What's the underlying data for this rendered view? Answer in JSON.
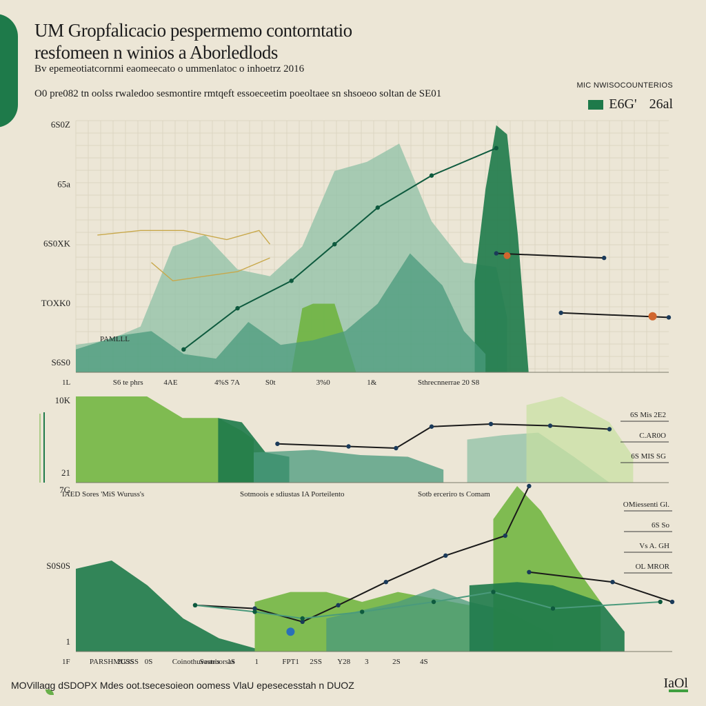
{
  "title_line1": "UM Gropfalicacio pespermemo contorntatio",
  "title_line2": "resfomeen n winios a Aborledlods",
  "subtitle": "Bv epemeotiatcornmi eaomeecato o ummenlatoc o inhoetrz 2016",
  "caption": "O0 pre082 tn oolss rwaledoo sesmontire rmtqeft essoeceetim poeoltaee sn shsoeoo soltan de SE01",
  "legend": {
    "heading": "MIC NWISOCOUNTERIOS",
    "value_a": "E6G'",
    "value_b": "26al",
    "swatch_color": "#1e7a4a"
  },
  "footer": "MOVillagg dSDOPX Mdes oot.tsecesoieon oomess VlaU epesecesstah n DUOZ",
  "corner_mark": "IaOl",
  "colors": {
    "dark_green": "#1e7a4a",
    "teal": "#4a9a7c",
    "pale_teal": "#8fc0a6",
    "very_pale": "#b9d6c2",
    "lime": "#6cb33a",
    "pale_lime": "#c8dfa0",
    "line_dark": "#0e5a3e",
    "line_black": "#1a1a1a",
    "gold": "#c8a84a",
    "marker_orange": "#d0662e",
    "marker_blue": "#2a70b8"
  },
  "chart_data": [
    {
      "type": "area",
      "panel": "top",
      "y_tick_labels": [
        "6S0Z",
        "65a",
        "6S0XK",
        "TOXK0",
        "S6S0"
      ],
      "x_tick_labels": [
        "1L",
        "S6 te phrs",
        "4AE",
        "4%S 7A",
        "S0t",
        "3%0",
        "1&",
        "Sthrecnnerrae 20 S8"
      ],
      "annotation_left": "PAMLLL",
      "series": [
        {
          "name": "",
          "kind": "area",
          "color": "pale_teal",
          "points": [
            [
              0,
              12
            ],
            [
              6,
              14
            ],
            [
              12,
              20
            ],
            [
              18,
              55
            ],
            [
              24,
              60
            ],
            [
              30,
              45
            ],
            [
              36,
              42
            ],
            [
              42,
              55
            ],
            [
              48,
              88
            ],
            [
              54,
              92
            ],
            [
              60,
              100
            ],
            [
              66,
              66
            ],
            [
              72,
              48
            ],
            [
              78,
              46
            ],
            [
              80,
              24
            ]
          ]
        },
        {
          "name": "",
          "kind": "area",
          "color": "lime",
          "points": [
            [
              40,
              0
            ],
            [
              42,
              28
            ],
            [
              44,
              30
            ],
            [
              48,
              30
            ],
            [
              52,
              0
            ]
          ]
        },
        {
          "name": "",
          "kind": "area",
          "color": "dark_green",
          "points": [
            [
              74,
              40
            ],
            [
              76,
              80
            ],
            [
              78,
              108
            ],
            [
              80,
              104
            ],
            [
              82,
              60
            ],
            [
              84,
              0
            ]
          ]
        },
        {
          "name": "",
          "kind": "area",
          "color": "teal",
          "points": [
            [
              0,
              10
            ],
            [
              8,
              16
            ],
            [
              14,
              18
            ],
            [
              20,
              8
            ],
            [
              26,
              6
            ],
            [
              32,
              22
            ],
            [
              38,
              12
            ],
            [
              44,
              14
            ],
            [
              50,
              18
            ],
            [
              56,
              30
            ],
            [
              62,
              52
            ],
            [
              68,
              38
            ],
            [
              72,
              18
            ],
            [
              76,
              8
            ]
          ]
        },
        {
          "name": "",
          "kind": "line",
          "color": "line_dark",
          "points": [
            [
              20,
              10
            ],
            [
              30,
              28
            ],
            [
              40,
              40
            ],
            [
              48,
              56
            ],
            [
              56,
              72
            ],
            [
              66,
              86
            ],
            [
              78,
              98
            ]
          ]
        },
        {
          "name": "",
          "kind": "line",
          "color": "line_black",
          "points": [
            [
              78,
              52
            ],
            [
              98,
              50
            ]
          ]
        },
        {
          "name": "",
          "kind": "line",
          "color": "line_black",
          "points": [
            [
              90,
              26
            ],
            [
              110,
              24
            ]
          ]
        },
        {
          "name": "",
          "kind": "line",
          "color": "gold",
          "points": [
            [
              4,
              60
            ],
            [
              12,
              62
            ],
            [
              20,
              62
            ],
            [
              28,
              58
            ],
            [
              34,
              62
            ],
            [
              36,
              56
            ]
          ]
        },
        {
          "name": "",
          "kind": "line",
          "color": "gold",
          "points": [
            [
              14,
              48
            ],
            [
              18,
              40
            ],
            [
              24,
              42
            ],
            [
              30,
              44
            ],
            [
              36,
              50
            ]
          ]
        }
      ]
    },
    {
      "type": "area",
      "panel": "middle",
      "y_tick_labels": [
        "10K",
        "21"
      ],
      "x_tick_labels": [
        "IAED Sores 'MiS Wuruss's",
        "Sotmoois e sdiustas IA Porteilento",
        "Sotb erceriro ts Comam"
      ],
      "right_labels": [
        "6S Mis 2E2",
        "C.AR0O",
        "6S MIS SG"
      ],
      "series": [
        {
          "name": "",
          "kind": "area",
          "color": "lime",
          "points": [
            [
              0,
              100
            ],
            [
              12,
              100
            ],
            [
              18,
              75
            ],
            [
              24,
              75
            ],
            [
              28,
              60
            ],
            [
              30,
              50
            ]
          ]
        },
        {
          "name": "",
          "kind": "area",
          "color": "dark_green",
          "points": [
            [
              24,
              75
            ],
            [
              28,
              70
            ],
            [
              32,
              35
            ],
            [
              36,
              30
            ]
          ]
        },
        {
          "name": "",
          "kind": "area",
          "color": "teal",
          "points": [
            [
              30,
              35
            ],
            [
              40,
              38
            ],
            [
              48,
              32
            ],
            [
              56,
              30
            ],
            [
              62,
              15
            ]
          ]
        },
        {
          "name": "",
          "kind": "area",
          "color": "pale_teal",
          "points": [
            [
              66,
              50
            ],
            [
              72,
              55
            ],
            [
              78,
              58
            ],
            [
              84,
              30
            ],
            [
              90,
              0
            ]
          ]
        },
        {
          "name": "",
          "kind": "area",
          "color": "pale_lime",
          "points": [
            [
              76,
              90
            ],
            [
              82,
              100
            ],
            [
              90,
              70
            ],
            [
              94,
              30
            ]
          ]
        },
        {
          "name": "",
          "kind": "line",
          "color": "line_black",
          "points": [
            [
              34,
              45
            ],
            [
              46,
              42
            ],
            [
              54,
              40
            ],
            [
              60,
              65
            ],
            [
              70,
              68
            ],
            [
              80,
              66
            ],
            [
              90,
              62
            ]
          ]
        }
      ]
    },
    {
      "type": "area",
      "panel": "bottom",
      "y_tick_labels": [
        "7G",
        "S0S0S",
        "1"
      ],
      "x_tick_labels": [
        "1F",
        "PARSHMUSS",
        "2G3SS",
        "0S",
        "Coinothuvestroorsas",
        "Saunis",
        "1S",
        "1",
        "FPT1",
        "2SS",
        "Y28",
        "3",
        "2S",
        "4S"
      ],
      "right_labels": [
        "OMiessenti Gl.",
        "6S So",
        "Vs A. GH",
        "OL MROR"
      ],
      "series": [
        {
          "name": "",
          "kind": "area",
          "color": "dark_green",
          "points": [
            [
              0,
              50
            ],
            [
              6,
              55
            ],
            [
              12,
              40
            ],
            [
              18,
              20
            ],
            [
              24,
              8
            ],
            [
              30,
              2
            ]
          ]
        },
        {
          "name": "",
          "kind": "area",
          "color": "lime",
          "points": [
            [
              30,
              30
            ],
            [
              36,
              36
            ],
            [
              42,
              36
            ],
            [
              48,
              30
            ],
            [
              54,
              36
            ],
            [
              60,
              32
            ],
            [
              66,
              28
            ]
          ]
        },
        {
          "name": "",
          "kind": "area",
          "color": "teal",
          "points": [
            [
              42,
              20
            ],
            [
              54,
              30
            ],
            [
              60,
              38
            ],
            [
              66,
              30
            ],
            [
              72,
              25
            ],
            [
              80,
              10
            ]
          ]
        },
        {
          "name": "",
          "kind": "area",
          "color": "lime",
          "points": [
            [
              70,
              80
            ],
            [
              74,
              100
            ],
            [
              78,
              85
            ],
            [
              84,
              50
            ],
            [
              88,
              30
            ]
          ]
        },
        {
          "name": "",
          "kind": "area",
          "color": "dark_green",
          "points": [
            [
              66,
              40
            ],
            [
              74,
              42
            ],
            [
              80,
              40
            ],
            [
              88,
              30
            ],
            [
              92,
              12
            ]
          ]
        },
        {
          "name": "",
          "kind": "line",
          "color": "line_black",
          "points": [
            [
              20,
              28
            ],
            [
              30,
              26
            ],
            [
              38,
              18
            ],
            [
              44,
              28
            ],
            [
              52,
              42
            ],
            [
              62,
              58
            ],
            [
              72,
              70
            ],
            [
              76,
              100
            ]
          ]
        },
        {
          "name": "",
          "kind": "line",
          "color": "line_black",
          "points": [
            [
              76,
              48
            ],
            [
              90,
              42
            ],
            [
              100,
              30
            ]
          ]
        },
        {
          "name": "",
          "kind": "line",
          "color": "teal",
          "points": [
            [
              20,
              28
            ],
            [
              30,
              24
            ],
            [
              38,
              20
            ],
            [
              48,
              24
            ],
            [
              60,
              30
            ],
            [
              70,
              36
            ],
            [
              80,
              26
            ],
            [
              98,
              30
            ]
          ]
        }
      ]
    }
  ]
}
